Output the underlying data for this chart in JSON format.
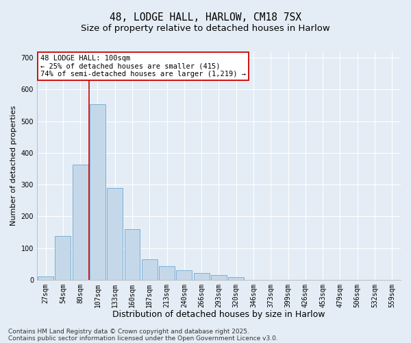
{
  "title1": "48, LODGE HALL, HARLOW, CM18 7SX",
  "title2": "Size of property relative to detached houses in Harlow",
  "xlabel": "Distribution of detached houses by size in Harlow",
  "ylabel": "Number of detached properties",
  "categories": [
    "27sqm",
    "54sqm",
    "80sqm",
    "107sqm",
    "133sqm",
    "160sqm",
    "187sqm",
    "213sqm",
    "240sqm",
    "266sqm",
    "293sqm",
    "320sqm",
    "346sqm",
    "373sqm",
    "399sqm",
    "426sqm",
    "453sqm",
    "479sqm",
    "506sqm",
    "532sqm",
    "559sqm"
  ],
  "values": [
    10,
    137,
    362,
    553,
    290,
    160,
    65,
    42,
    30,
    20,
    15,
    8,
    0,
    0,
    0,
    0,
    0,
    0,
    0,
    0,
    0
  ],
  "bar_color": "#c5d8ea",
  "bar_edge_color": "#7bafd4",
  "background_color": "#e4edf5",
  "grid_color": "#ffffff",
  "vline_position": 2.5,
  "vline_color": "#cc0000",
  "annotation_text": "48 LODGE HALL: 100sqm\n← 25% of detached houses are smaller (415)\n74% of semi-detached houses are larger (1,219) →",
  "annotation_box_facecolor": "#ffffff",
  "annotation_box_edge": "#cc0000",
  "footer1": "Contains HM Land Registry data © Crown copyright and database right 2025.",
  "footer2": "Contains public sector information licensed under the Open Government Licence v3.0.",
  "ylim": [
    0,
    720
  ],
  "title_fontsize": 10.5,
  "subtitle_fontsize": 9.5,
  "xlabel_fontsize": 9,
  "ylabel_fontsize": 8,
  "tick_fontsize": 7,
  "annot_fontsize": 7.5,
  "footer_fontsize": 6.5
}
